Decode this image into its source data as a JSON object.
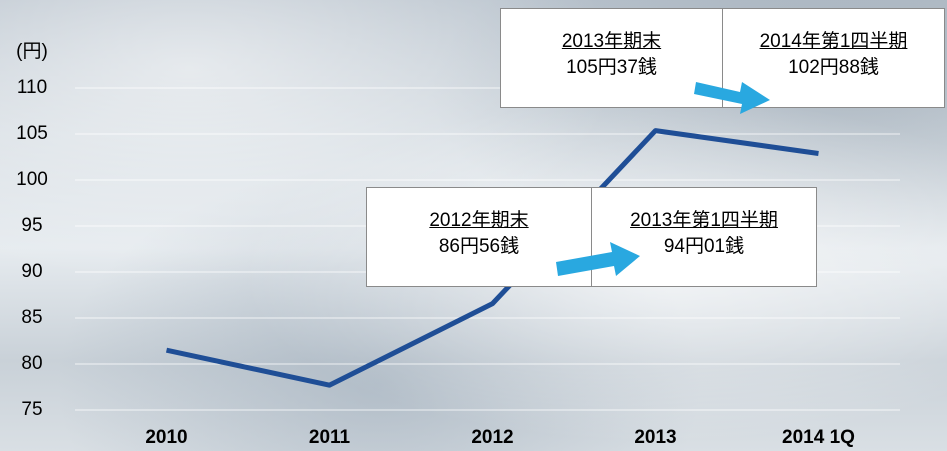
{
  "chart_data": {
    "type": "line",
    "y_label": "(円)",
    "categories": [
      "2010",
      "2011",
      "2012",
      "2013",
      "2014 1Q"
    ],
    "series": [
      {
        "name": null,
        "color": "#1f4e96",
        "values": [
          81.5,
          77.7,
          86.56,
          105.37,
          102.88
        ]
      }
    ],
    "ylim": [
      75,
      110
    ],
    "yticks": [
      75,
      80,
      85,
      90,
      95,
      100,
      105,
      110
    ],
    "grid": true,
    "annotations": [
      {
        "from_label": "2012年期末",
        "from_value": "86円56銭",
        "to_label": "2013年第1四半期",
        "to_value": "94円01銭"
      },
      {
        "from_label": "2013年期末",
        "from_value": "105円37銭",
        "to_label": "2014年第1四半期",
        "to_value": "102円88銭"
      }
    ]
  }
}
